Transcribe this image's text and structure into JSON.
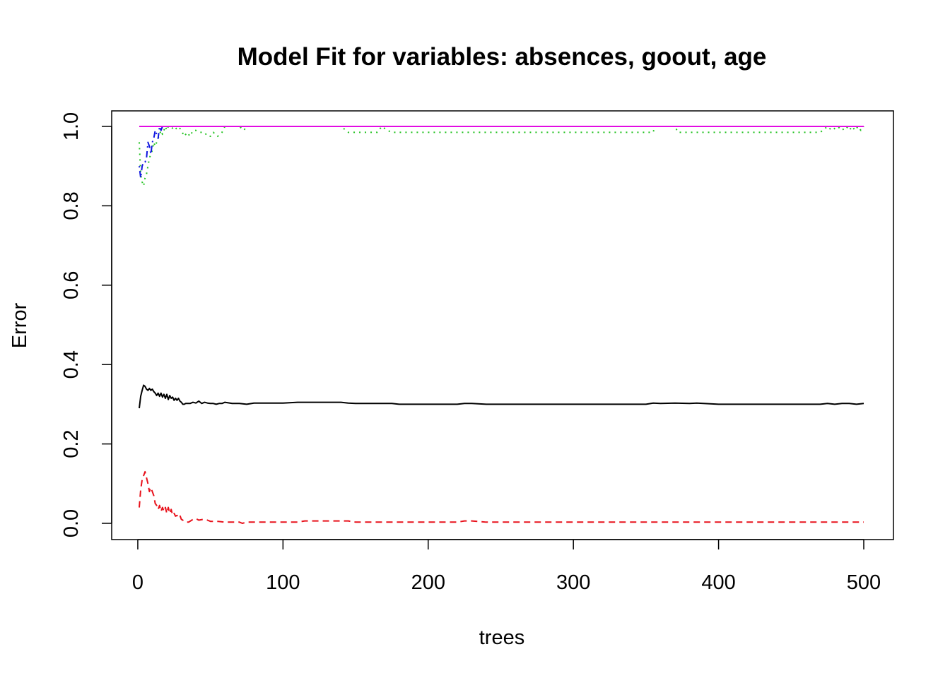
{
  "chart_data": {
    "type": "line",
    "title": "Model Fit for variables: absences, goout, age",
    "xlabel": "trees",
    "ylabel": "Error",
    "xlim": [
      1,
      500
    ],
    "ylim": [
      0.0,
      1.0
    ],
    "xticks": [
      0,
      100,
      200,
      300,
      400,
      500
    ],
    "yticks": [
      "0.0",
      "0.2",
      "0.4",
      "0.6",
      "0.8",
      "1.0"
    ],
    "grid": false,
    "legend": "none",
    "series": [
      {
        "color": "#000000",
        "dash": "solid",
        "x": [
          1,
          2,
          3,
          4,
          5,
          6,
          7,
          8,
          9,
          10,
          11,
          12,
          13,
          14,
          15,
          16,
          17,
          18,
          19,
          20,
          21,
          22,
          23,
          24,
          25,
          26,
          27,
          28,
          29,
          30,
          31,
          32,
          33,
          34,
          36,
          38,
          40,
          42,
          44,
          46,
          48,
          50,
          52,
          54,
          56,
          58,
          60,
          65,
          70,
          75,
          80,
          90,
          100,
          110,
          120,
          130,
          140,
          145,
          150,
          160,
          170,
          175,
          180,
          200,
          220,
          225,
          230,
          240,
          260,
          300,
          350,
          355,
          360,
          370,
          380,
          385,
          400,
          420,
          450,
          470,
          475,
          480,
          485,
          490,
          495,
          500
        ],
        "y": [
          0.29,
          0.32,
          0.335,
          0.348,
          0.345,
          0.338,
          0.335,
          0.34,
          0.335,
          0.338,
          0.332,
          0.328,
          0.322,
          0.328,
          0.32,
          0.328,
          0.318,
          0.325,
          0.315,
          0.325,
          0.312,
          0.322,
          0.315,
          0.318,
          0.31,
          0.315,
          0.31,
          0.315,
          0.308,
          0.305,
          0.3,
          0.3,
          0.302,
          0.302,
          0.302,
          0.305,
          0.303,
          0.308,
          0.302,
          0.305,
          0.303,
          0.302,
          0.302,
          0.3,
          0.302,
          0.302,
          0.305,
          0.302,
          0.302,
          0.3,
          0.303,
          0.303,
          0.303,
          0.305,
          0.305,
          0.305,
          0.305,
          0.303,
          0.302,
          0.302,
          0.302,
          0.302,
          0.3,
          0.3,
          0.3,
          0.302,
          0.302,
          0.3,
          0.3,
          0.3,
          0.3,
          0.303,
          0.302,
          0.303,
          0.302,
          0.303,
          0.3,
          0.3,
          0.3,
          0.3,
          0.302,
          0.3,
          0.302,
          0.302,
          0.3,
          0.302
        ]
      },
      {
        "color": "#e8101a",
        "dash": "dashed",
        "x": [
          1,
          2,
          3,
          4,
          5,
          6,
          7,
          8,
          9,
          10,
          11,
          12,
          13,
          14,
          15,
          16,
          17,
          18,
          19,
          20,
          21,
          22,
          23,
          24,
          25,
          26,
          27,
          28,
          29,
          30,
          31,
          32,
          33,
          35,
          38,
          40,
          42,
          45,
          48,
          50,
          55,
          60,
          65,
          70,
          72,
          75,
          80,
          100,
          110,
          115,
          120,
          140,
          145,
          150,
          200,
          220,
          225,
          230,
          240,
          300,
          400,
          500
        ],
        "y": [
          0.04,
          0.085,
          0.11,
          0.12,
          0.13,
          0.115,
          0.1,
          0.08,
          0.09,
          0.08,
          0.07,
          0.05,
          0.045,
          0.035,
          0.045,
          0.03,
          0.04,
          0.03,
          0.04,
          0.025,
          0.04,
          0.025,
          0.035,
          0.02,
          0.025,
          0.018,
          0.02,
          0.015,
          0.02,
          0.01,
          0.008,
          0.005,
          0.003,
          0.003,
          0.01,
          0.012,
          0.008,
          0.01,
          0.008,
          0.005,
          0.005,
          0.003,
          0.003,
          0.003,
          0.0,
          0.003,
          0.003,
          0.003,
          0.003,
          0.006,
          0.006,
          0.006,
          0.006,
          0.003,
          0.003,
          0.003,
          0.006,
          0.006,
          0.003,
          0.003,
          0.003,
          0.003
        ]
      },
      {
        "color": "#21c21f",
        "dash": "dotted",
        "x": [
          1,
          2,
          3,
          4,
          5,
          6,
          7,
          8,
          9,
          10,
          11,
          12,
          13,
          14,
          15,
          16,
          17,
          18,
          19,
          20,
          21,
          22,
          23,
          25,
          28,
          30,
          32,
          34,
          36,
          38,
          40,
          43,
          46,
          48,
          50,
          52,
          55,
          58,
          60,
          70,
          73,
          75,
          76,
          80,
          140,
          145,
          150,
          165,
          168,
          172,
          175,
          180,
          355,
          356,
          370,
          372,
          380,
          385,
          470,
          475,
          478,
          482,
          485,
          488,
          490,
          492,
          494,
          496,
          498,
          500
        ],
        "y": [
          0.96,
          0.88,
          0.86,
          0.85,
          0.87,
          0.88,
          0.9,
          0.92,
          0.93,
          0.94,
          0.96,
          0.95,
          0.96,
          0.97,
          0.98,
          0.99,
          0.98,
          0.99,
          1.0,
          0.99,
          1.0,
          1.0,
          1.0,
          0.99,
          1.0,
          0.99,
          0.975,
          0.985,
          0.975,
          0.99,
          0.99,
          0.985,
          0.985,
          0.975,
          0.975,
          0.985,
          0.975,
          0.985,
          1.0,
          1.0,
          0.99,
          1.0,
          1.0,
          1.0,
          1.0,
          0.985,
          0.985,
          0.985,
          1.0,
          0.99,
          0.985,
          0.985,
          0.985,
          1.0,
          1.0,
          0.985,
          0.985,
          0.985,
          0.985,
          1.0,
          0.99,
          1.0,
          0.99,
          1.0,
          0.99,
          1.0,
          0.99,
          1.0,
          0.99,
          1.0
        ]
      },
      {
        "color": "#1016e0",
        "dash": "dotdash",
        "x": [
          1,
          2,
          3,
          4,
          5,
          6,
          7,
          8,
          9,
          10,
          11,
          12,
          13,
          14,
          15,
          16,
          17,
          18,
          20,
          25,
          30,
          50,
          100,
          200,
          300,
          400,
          500
        ],
        "y": [
          0.9,
          0.87,
          0.9,
          0.91,
          0.91,
          0.92,
          0.96,
          0.95,
          0.93,
          0.96,
          0.97,
          0.99,
          0.98,
          0.97,
          1.0,
          0.99,
          1.0,
          1.0,
          1.0,
          1.0,
          1.0,
          1.0,
          1.0,
          1.0,
          1.0,
          1.0,
          1.0
        ]
      },
      {
        "color": "#e30ce3",
        "dash": "solid",
        "x": [
          1,
          500
        ],
        "y": [
          1.0,
          1.0
        ]
      }
    ]
  }
}
